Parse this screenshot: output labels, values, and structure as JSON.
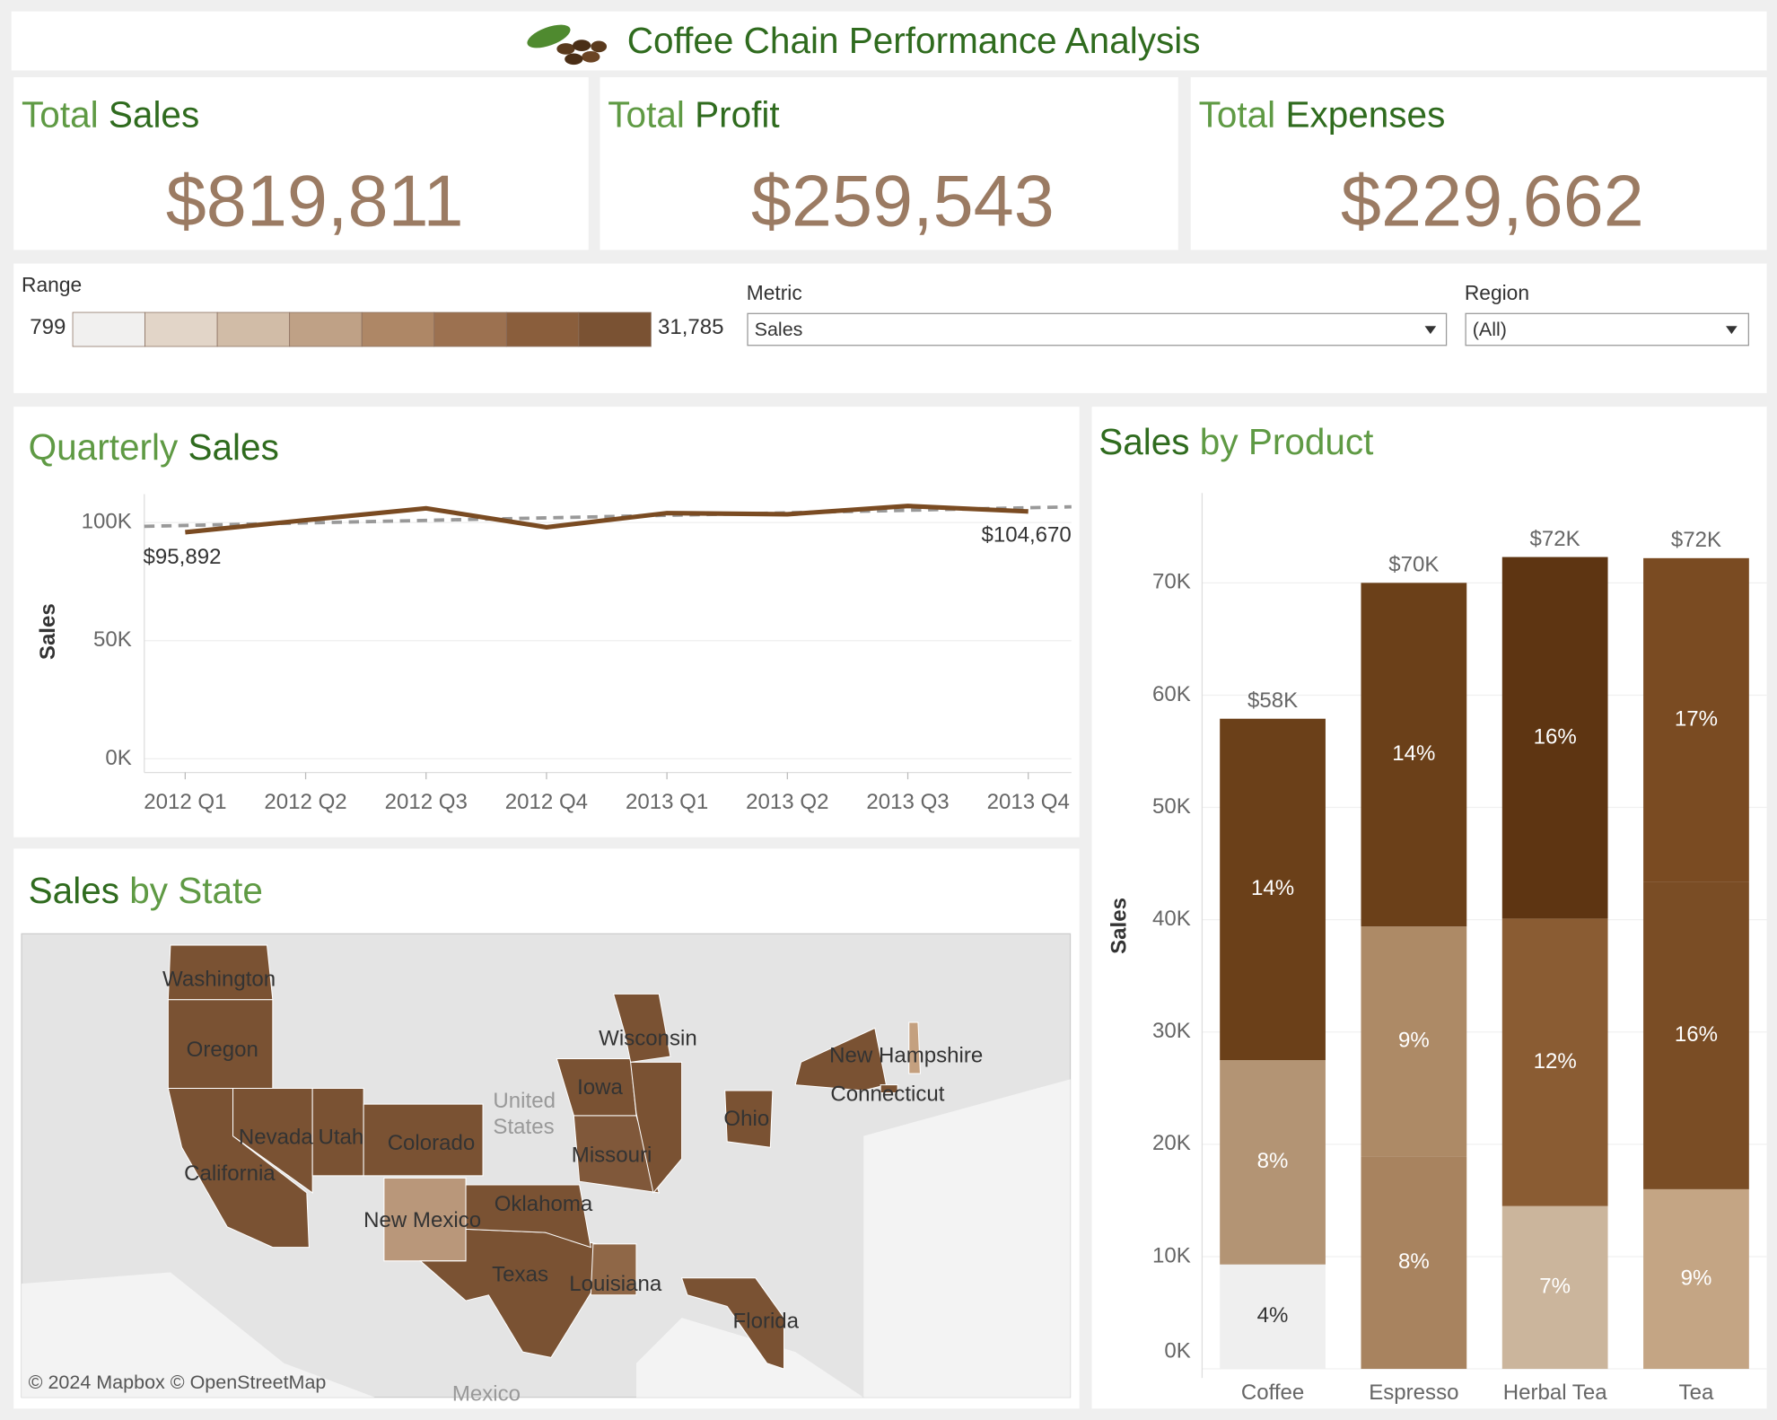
{
  "header": {
    "title": "Coffee Chain Performance Analysis"
  },
  "kpis": [
    {
      "label": [
        "Total",
        "Sales"
      ],
      "value": "$819,811"
    },
    {
      "label": [
        "Total",
        "Profit"
      ],
      "value": "$259,543"
    },
    {
      "label": [
        "Total",
        "Expenses"
      ],
      "value": "$229,662"
    }
  ],
  "filters": {
    "range": {
      "label": "Range",
      "min": 799,
      "max": {
        "value": 31785,
        "label": "31,785"
      },
      "colors": [
        "#f1f0ef",
        "#e2d5c8",
        "#d1bca7",
        "#bfa186",
        "#ae8766",
        "#9c7150",
        "#8a5e3c",
        "#7a5233"
      ]
    },
    "metric": {
      "label": "Metric",
      "value": "Sales"
    },
    "region": {
      "label": "Region",
      "value": "(All)"
    }
  },
  "chart_data": [
    {
      "type": "line",
      "title": [
        "Quarterly",
        "Sales"
      ],
      "ylabel": "Sales",
      "categories": [
        "2012 Q1",
        "2012 Q2",
        "2012 Q3",
        "2012 Q4",
        "2013 Q1",
        "2013 Q2",
        "2013 Q3",
        "2013 Q4"
      ],
      "values": [
        95892,
        101000,
        106000,
        98000,
        104000,
        103500,
        107000,
        104670
      ],
      "value_labels": [
        "$95,892",
        null,
        null,
        null,
        null,
        null,
        null,
        "$104,670"
      ],
      "color": "#7a4b22",
      "trendline": true,
      "trend_color": "#999999",
      "grid": true,
      "ylim": [
        0,
        112000
      ],
      "yticks": [
        {
          "value": 0,
          "label": "0K"
        },
        {
          "value": 50000,
          "label": "50K"
        },
        {
          "value": 100000,
          "label": "100K"
        }
      ]
    },
    {
      "type": "map",
      "title": [
        "Sales",
        "by State"
      ],
      "country": [
        "United",
        "States"
      ],
      "annotations": [
        "Mexico",
        "© 2024 Mapbox © OpenStreetMap"
      ],
      "states": [
        {
          "name": "Washington",
          "color": "#7a5233"
        },
        {
          "name": "Oregon",
          "color": "#7a5233"
        },
        {
          "name": "California",
          "color": "#7a5233"
        },
        {
          "name": "Nevada",
          "color": "#7a5233"
        },
        {
          "name": "Utah",
          "color": "#7a5233"
        },
        {
          "name": "Colorado",
          "color": "#7a5233"
        },
        {
          "name": "New Mexico",
          "color": "#b9977a"
        },
        {
          "name": "Texas",
          "color": "#7a5233"
        },
        {
          "name": "Oklahoma",
          "color": "#7a5233"
        },
        {
          "name": "Louisiana",
          "color": "#8f6747"
        },
        {
          "name": "Missouri",
          "color": "#80583a"
        },
        {
          "name": "Iowa",
          "color": "#7a5233"
        },
        {
          "name": "Wisconsin",
          "color": "#7a5233"
        },
        {
          "name": null,
          "color": "#7a5233"
        },
        {
          "name": "Ohio",
          "color": "#7a5233"
        },
        {
          "name": null,
          "color": "#7a5233"
        },
        {
          "name": "New Hampshire",
          "color": "#c4a07f"
        },
        {
          "name": "Connecticut",
          "color": "#7a5233"
        },
        {
          "name": "Florida",
          "color": "#7a5233"
        }
      ]
    },
    {
      "type": "bar",
      "stacked": true,
      "title": [
        "Sales",
        "by Product"
      ],
      "ylabel": "Sales",
      "categories": [
        "Coffee",
        "Espresso",
        "Herbal Tea",
        "Tea"
      ],
      "series": [
        {
          "values": [
            9300,
            18900,
            14500,
            16000
          ],
          "colors": [
            "#efefef",
            "#a8835f",
            "#cbb59c",
            "#c4a584"
          ],
          "labels": [
            "4%",
            "8%",
            "7%",
            "9%"
          ]
        },
        {
          "values": [
            18200,
            20500,
            25600,
            27400
          ],
          "colors": [
            "#b39474",
            "#ad8a66",
            "#8a5c33",
            "#7a4d25"
          ],
          "labels": [
            "8%",
            "9%",
            "12%",
            "16%"
          ]
        },
        {
          "values": [
            30400,
            30600,
            32200,
            28800
          ],
          "colors": [
            "#6b4019",
            "#6b4019",
            "#5e3512",
            "#7a4b22"
          ],
          "labels": [
            "14%",
            "14%",
            "16%",
            "17%"
          ]
        }
      ],
      "total_labels": [
        "$58K",
        "$70K",
        "$72K",
        "$72K"
      ],
      "grid": true,
      "ylim": [
        0,
        78000
      ],
      "yticks": [
        {
          "value": 0,
          "label": "0K"
        },
        {
          "value": 10000,
          "label": "10K"
        },
        {
          "value": 20000,
          "label": "20K"
        },
        {
          "value": 30000,
          "label": "30K"
        },
        {
          "value": 40000,
          "label": "40K"
        },
        {
          "value": 50000,
          "label": "50K"
        },
        {
          "value": 60000,
          "label": "60K"
        },
        {
          "value": 70000,
          "label": "70K"
        }
      ]
    }
  ]
}
